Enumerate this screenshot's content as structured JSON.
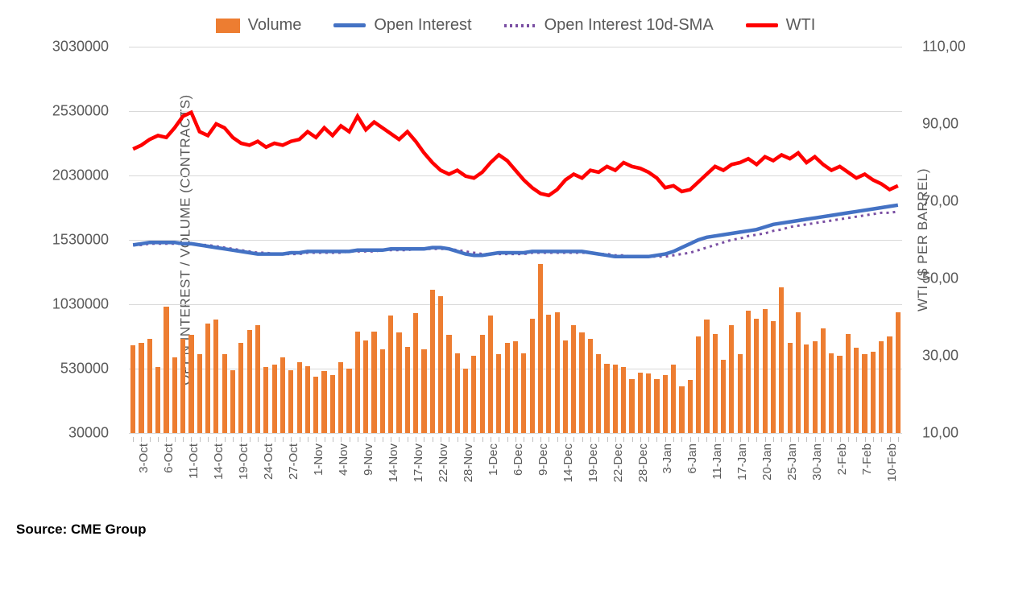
{
  "chart": {
    "type": "combo-bar-line",
    "background_color": "#ffffff",
    "grid_color": "#d9d9d9",
    "axis_text_color": "#595959",
    "legend": [
      {
        "label": "Volume",
        "type": "bar",
        "color": "#ed7d31"
      },
      {
        "label": "Open Interest",
        "type": "line",
        "color": "#4472c4"
      },
      {
        "label": "Open Interest 10d-SMA",
        "type": "dotted",
        "color": "#7a4fa3"
      },
      {
        "label": "WTI",
        "type": "line",
        "color": "#ff0000"
      }
    ],
    "y_left": {
      "label": "OPEN INTEREST / VOLUME (CONTRACTS)",
      "min": 30000,
      "max": 3030000,
      "ticks": [
        30000,
        530000,
        1030000,
        1530000,
        2030000,
        2530000,
        3030000
      ]
    },
    "y_right": {
      "label": "WTI ($ PER BARREL)",
      "min": 10,
      "max": 110,
      "ticks": [
        "10,00",
        "30,00",
        "50,00",
        "70,00",
        "90,00",
        "110,00"
      ]
    },
    "x_labels": [
      "3-Oct",
      "6-Oct",
      "11-Oct",
      "14-Oct",
      "19-Oct",
      "24-Oct",
      "27-Oct",
      "1-Nov",
      "4-Nov",
      "9-Nov",
      "14-Nov",
      "17-Nov",
      "22-Nov",
      "28-Nov",
      "1-Dec",
      "6-Dec",
      "9-Dec",
      "14-Dec",
      "19-Dec",
      "22-Dec",
      "28-Dec",
      "3-Jan",
      "6-Jan",
      "11-Jan",
      "17-Jan",
      "20-Jan",
      "25-Jan",
      "30-Jan",
      "2-Feb",
      "7-Feb",
      "10-Feb"
    ],
    "n_points": 93,
    "volume": [
      710000,
      730000,
      760000,
      540000,
      1010000,
      620000,
      760000,
      790000,
      640000,
      880000,
      910000,
      640000,
      520000,
      730000,
      830000,
      870000,
      540000,
      560000,
      620000,
      520000,
      580000,
      550000,
      470000,
      510000,
      480000,
      580000,
      530000,
      820000,
      750000,
      820000,
      680000,
      940000,
      810000,
      700000,
      960000,
      680000,
      1140000,
      1090000,
      790000,
      650000,
      530000,
      630000,
      790000,
      940000,
      640000,
      730000,
      740000,
      650000,
      920000,
      1340000,
      950000,
      970000,
      750000,
      870000,
      810000,
      760000,
      640000,
      570000,
      560000,
      540000,
      450000,
      500000,
      490000,
      450000,
      480000,
      560000,
      390000,
      440000,
      780000,
      910000,
      800000,
      600000,
      870000,
      640000,
      980000,
      920000,
      990000,
      900000,
      1160000,
      730000,
      970000,
      720000,
      740000,
      840000,
      650000,
      630000,
      800000,
      690000,
      640000,
      660000,
      740000,
      780000,
      970000
    ],
    "open_interest": [
      1490000,
      1500000,
      1510000,
      1510000,
      1510000,
      1510000,
      1500000,
      1500000,
      1490000,
      1480000,
      1470000,
      1460000,
      1450000,
      1440000,
      1430000,
      1420000,
      1420000,
      1420000,
      1420000,
      1430000,
      1430000,
      1440000,
      1440000,
      1440000,
      1440000,
      1440000,
      1440000,
      1450000,
      1450000,
      1450000,
      1450000,
      1460000,
      1460000,
      1460000,
      1460000,
      1460000,
      1470000,
      1470000,
      1460000,
      1440000,
      1420000,
      1410000,
      1410000,
      1420000,
      1430000,
      1430000,
      1430000,
      1430000,
      1440000,
      1440000,
      1440000,
      1440000,
      1440000,
      1440000,
      1440000,
      1430000,
      1420000,
      1410000,
      1400000,
      1400000,
      1400000,
      1400000,
      1400000,
      1410000,
      1420000,
      1440000,
      1470000,
      1500000,
      1530000,
      1550000,
      1560000,
      1570000,
      1580000,
      1590000,
      1600000,
      1610000,
      1630000,
      1650000,
      1660000,
      1670000,
      1680000,
      1690000,
      1700000,
      1710000,
      1720000,
      1730000,
      1740000,
      1750000,
      1760000,
      1770000,
      1780000,
      1790000,
      1800000
    ],
    "open_interest_sma": [
      1490000,
      1490000,
      1500000,
      1500000,
      1500000,
      1500000,
      1500000,
      1500000,
      1490000,
      1490000,
      1480000,
      1470000,
      1460000,
      1450000,
      1440000,
      1430000,
      1430000,
      1420000,
      1420000,
      1420000,
      1420000,
      1430000,
      1430000,
      1430000,
      1430000,
      1430000,
      1440000,
      1440000,
      1440000,
      1440000,
      1450000,
      1450000,
      1450000,
      1450000,
      1460000,
      1460000,
      1460000,
      1460000,
      1460000,
      1450000,
      1440000,
      1430000,
      1420000,
      1420000,
      1420000,
      1420000,
      1420000,
      1420000,
      1430000,
      1430000,
      1430000,
      1430000,
      1430000,
      1430000,
      1430000,
      1430000,
      1420000,
      1420000,
      1410000,
      1410000,
      1400000,
      1400000,
      1400000,
      1400000,
      1400000,
      1410000,
      1420000,
      1430000,
      1450000,
      1470000,
      1490000,
      1510000,
      1530000,
      1540000,
      1560000,
      1570000,
      1580000,
      1600000,
      1610000,
      1630000,
      1640000,
      1650000,
      1660000,
      1670000,
      1680000,
      1690000,
      1700000,
      1710000,
      1720000,
      1730000,
      1740000,
      1740000,
      1750000
    ],
    "wti": [
      83.5,
      84.5,
      86.0,
      87.0,
      86.5,
      89.0,
      92.0,
      93.0,
      88.0,
      87.0,
      90.0,
      89.0,
      86.5,
      85.0,
      84.5,
      85.5,
      84.0,
      85.0,
      84.5,
      85.5,
      86.0,
      88.0,
      86.5,
      89.0,
      87.0,
      89.5,
      88.0,
      92.0,
      88.5,
      90.5,
      89.0,
      87.5,
      86.0,
      88.0,
      85.5,
      82.5,
      80.0,
      78.0,
      77.0,
      78.0,
      76.5,
      76.0,
      77.5,
      80.0,
      82.0,
      80.5,
      78.0,
      75.5,
      73.5,
      72.0,
      71.5,
      73.0,
      75.5,
      77.0,
      76.0,
      78.0,
      77.5,
      79.0,
      78.0,
      80.0,
      79.0,
      78.5,
      77.5,
      76.0,
      73.5,
      74.0,
      72.5,
      73.0,
      75.0,
      77.0,
      79.0,
      78.0,
      79.5,
      80.0,
      81.0,
      79.5,
      81.5,
      80.5,
      82.0,
      81.0,
      82.5,
      80.0,
      81.5,
      79.5,
      78.0,
      79.0,
      77.5,
      76.0,
      77.0,
      75.5,
      74.5,
      73.0,
      74.0
    ]
  },
  "source_label": "Source: CME Group"
}
